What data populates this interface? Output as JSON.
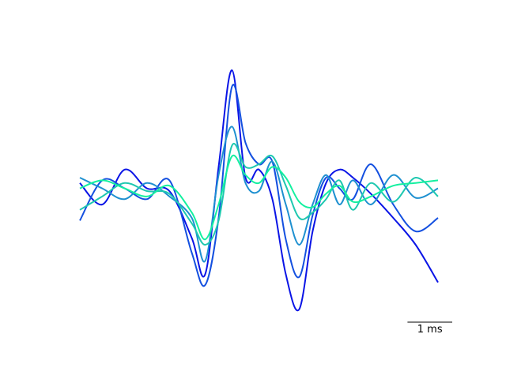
{
  "chart_data": {
    "type": "line",
    "title": "",
    "xlabel": "",
    "ylabel": "",
    "axes_visible": false,
    "grid": false,
    "legend": "none",
    "xlim": [
      0,
      8
    ],
    "ylim": [
      -1.0,
      1.0
    ],
    "scale_bar": {
      "label": "1 ms",
      "length_ms": 1
    },
    "colormap": [
      "#0a14e6",
      "#1450e0",
      "#1e90d0",
      "#1ec8b0",
      "#14f0a0"
    ],
    "x": [
      0.0,
      0.5,
      1.0,
      1.5,
      2.0,
      2.5,
      2.8,
      3.1,
      3.4,
      3.7,
      4.0,
      4.3,
      4.6,
      4.9,
      5.2,
      5.5,
      5.8,
      6.1,
      6.5,
      7.0,
      7.5,
      8.0
    ],
    "series": [
      {
        "values": [
          0.06,
          -0.1,
          0.16,
          0.02,
          0.0,
          -0.35,
          -0.62,
          0.18,
          0.9,
          0.1,
          0.16,
          -0.06,
          -0.62,
          -0.88,
          -0.3,
          0.06,
          0.16,
          0.1,
          -0.02,
          -0.2,
          -0.4,
          -0.68
        ]
      },
      {
        "values": [
          -0.22,
          0.08,
          0.02,
          -0.06,
          0.08,
          -0.46,
          -0.7,
          -0.2,
          0.78,
          0.36,
          0.2,
          0.22,
          -0.36,
          -0.64,
          -0.18,
          0.1,
          0.02,
          -0.06,
          0.2,
          -0.1,
          -0.3,
          -0.2
        ]
      },
      {
        "values": [
          0.1,
          0.02,
          -0.06,
          0.06,
          -0.04,
          -0.2,
          -0.52,
          0.12,
          0.48,
          0.06,
          0.0,
          0.22,
          -0.1,
          -0.4,
          -0.1,
          0.12,
          -0.1,
          0.08,
          -0.1,
          0.12,
          -0.05,
          0.02
        ]
      },
      {
        "values": [
          -0.14,
          -0.04,
          0.06,
          0.0,
          -0.02,
          -0.24,
          -0.4,
          -0.22,
          0.34,
          0.18,
          0.2,
          0.26,
          0.04,
          -0.2,
          -0.16,
          -0.06,
          0.08,
          -0.14,
          0.06,
          -0.08,
          0.1,
          -0.04
        ]
      },
      {
        "values": [
          0.02,
          0.08,
          0.02,
          -0.04,
          0.04,
          -0.16,
          -0.36,
          -0.1,
          0.26,
          0.12,
          0.06,
          0.18,
          0.1,
          -0.08,
          -0.12,
          -0.02,
          0.04,
          -0.08,
          -0.04,
          0.04,
          0.06,
          0.08
        ]
      }
    ]
  }
}
